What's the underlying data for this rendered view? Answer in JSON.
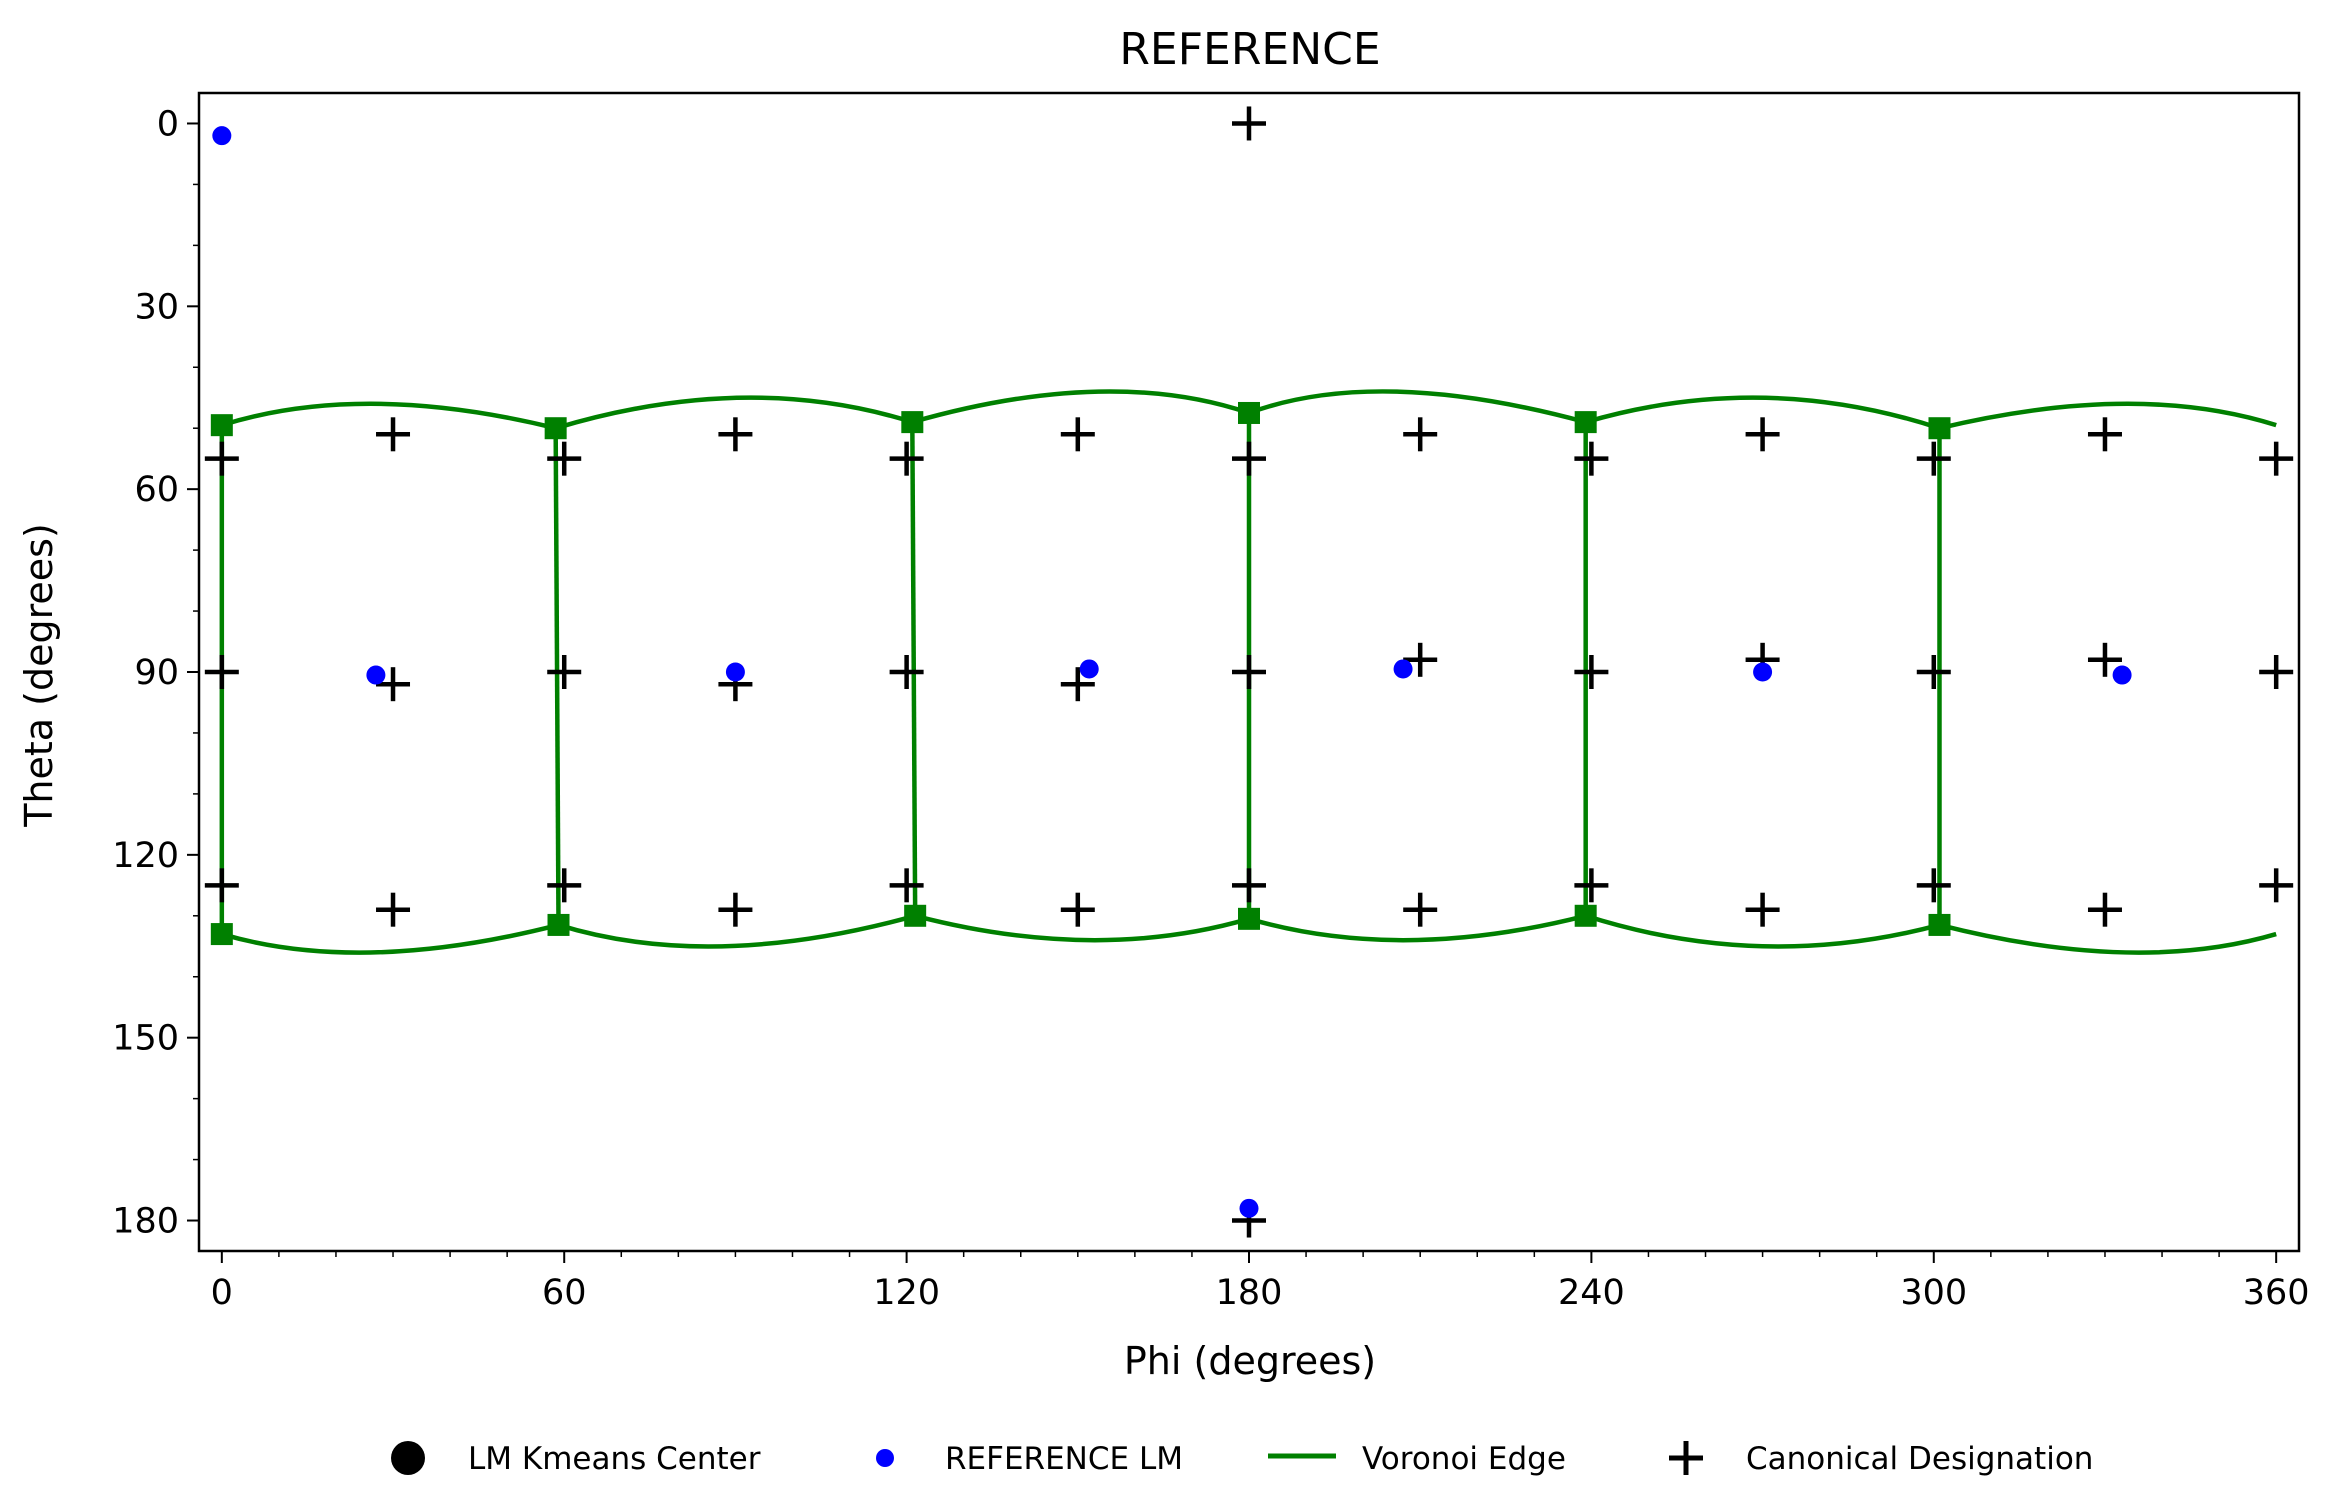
{
  "chart_data": {
    "type": "scatter",
    "title": "REFERENCE",
    "xlabel": "Phi (degrees)",
    "ylabel": "Theta (degrees)",
    "xlim": [
      -4,
      364
    ],
    "ylim": [
      185,
      -5
    ],
    "y_inverted": true,
    "xticks": [
      0,
      60,
      120,
      180,
      240,
      300,
      360
    ],
    "yticks": [
      0,
      30,
      60,
      90,
      120,
      150,
      180
    ],
    "grid": false,
    "legend_position": "bottom",
    "legend": [
      {
        "label": "LM Kmeans Center",
        "marker": "large-circle",
        "color": "#000000"
      },
      {
        "label": "REFERENCE LM",
        "marker": "small-circle",
        "color": "#0000ff"
      },
      {
        "label": "Voronoi Edge",
        "marker": "line",
        "color": "#008000"
      },
      {
        "label": "Canonical Designation",
        "marker": "plus",
        "color": "#000000"
      }
    ],
    "series": [
      {
        "name": "REFERENCE LM",
        "color": "#0000ff",
        "points": [
          [
            0,
            2
          ],
          [
            27,
            90.5
          ],
          [
            90,
            90
          ],
          [
            152,
            89.5
          ],
          [
            207,
            89.5
          ],
          [
            270,
            90
          ],
          [
            333,
            90.5
          ],
          [
            180,
            178
          ]
        ]
      },
      {
        "name": "Canonical Designation",
        "color": "#000000",
        "points": [
          [
            180,
            0
          ],
          [
            180,
            180
          ],
          [
            30,
            51
          ],
          [
            90,
            51
          ],
          [
            150,
            51
          ],
          [
            210,
            51
          ],
          [
            270,
            51
          ],
          [
            330,
            51
          ],
          [
            0,
            55
          ],
          [
            60,
            55
          ],
          [
            120,
            55
          ],
          [
            180,
            55
          ],
          [
            240,
            55
          ],
          [
            300,
            55
          ],
          [
            360,
            55
          ],
          [
            30,
            92
          ],
          [
            90,
            92
          ],
          [
            150,
            92
          ],
          [
            210,
            88
          ],
          [
            270,
            88
          ],
          [
            330,
            88
          ],
          [
            0,
            90
          ],
          [
            60,
            90
          ],
          [
            120,
            90
          ],
          [
            180,
            90
          ],
          [
            240,
            90
          ],
          [
            300,
            90
          ],
          [
            360,
            90
          ],
          [
            30,
            129
          ],
          [
            90,
            129
          ],
          [
            150,
            129
          ],
          [
            210,
            129
          ],
          [
            270,
            129
          ],
          [
            330,
            129
          ],
          [
            0,
            125
          ],
          [
            60,
            125
          ],
          [
            120,
            125
          ],
          [
            180,
            125
          ],
          [
            240,
            125
          ],
          [
            300,
            125
          ],
          [
            360,
            125
          ]
        ]
      },
      {
        "name": "Voronoi Edge",
        "color": "#008000",
        "vertices_top": [
          [
            0,
            49.5
          ],
          [
            58.5,
            50
          ],
          [
            121,
            49
          ],
          [
            180,
            47.5
          ],
          [
            239,
            49
          ],
          [
            301,
            50
          ]
        ],
        "vertices_bottom": [
          [
            0,
            133
          ],
          [
            59,
            131.5
          ],
          [
            121.5,
            130
          ],
          [
            180,
            130.5
          ],
          [
            239,
            130
          ],
          [
            301,
            131.5
          ]
        ],
        "arc_top_peaks": [
          [
            27,
            46
          ],
          [
            91,
            45
          ],
          [
            153,
            44
          ],
          [
            206,
            44
          ],
          [
            270,
            45
          ],
          [
            333,
            46
          ]
        ],
        "arc_bottom_peaks": [
          [
            27,
            136
          ],
          [
            88,
            135
          ],
          [
            152,
            134
          ],
          [
            208,
            134
          ],
          [
            270,
            135
          ],
          [
            333,
            136
          ]
        ],
        "top_end": [
          360,
          49.5
        ],
        "bottom_end": [
          360,
          133
        ]
      }
    ]
  }
}
